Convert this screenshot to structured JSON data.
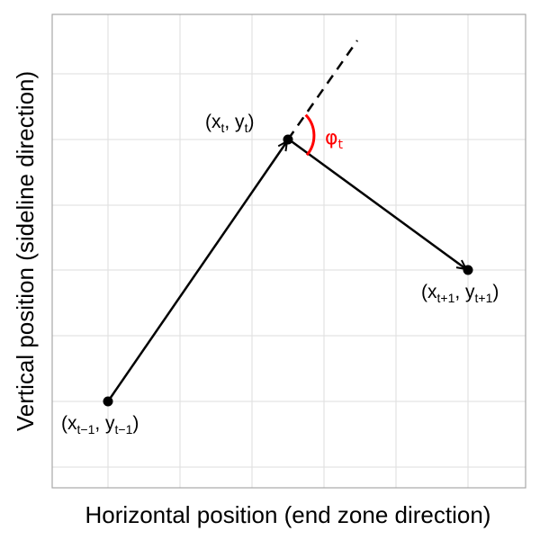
{
  "axes": {
    "xlabel": "Horizontal position (end zone direction)",
    "ylabel": "Vertical position (sideline direction)"
  },
  "points": {
    "prev": {
      "base_x": "(x",
      "sub_x": "t−1",
      "mid": ", y",
      "sub_y": "t−1",
      "end": ")"
    },
    "curr": {
      "base_x": "(x",
      "sub_x": "t",
      "mid": ", y",
      "sub_y": "t",
      "end": ")"
    },
    "next": {
      "base_x": "(x",
      "sub_x": "t+1",
      "mid": ", y",
      "sub_y": "t+1",
      "end": ")"
    }
  },
  "angle": {
    "symbol": "φ",
    "sub": "t"
  },
  "colors": {
    "angle": "#ff0000",
    "grid": "#dedede",
    "panel_border": "#a8a8a8",
    "path": "#000000"
  }
}
